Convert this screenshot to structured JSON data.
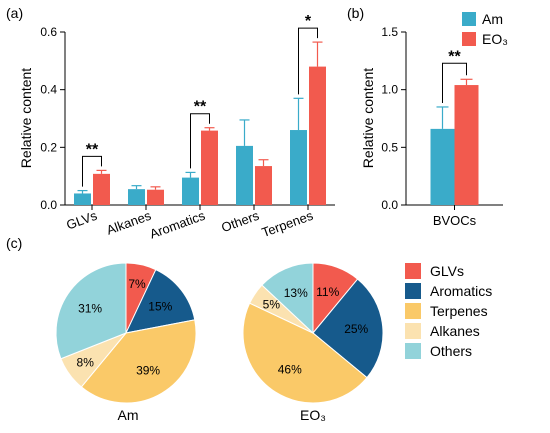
{
  "colors": {
    "Am": "#3aabc9",
    "EO3": "#f25a4e",
    "GLVs": "#f25a4e",
    "Aromatics": "#165a8c",
    "Terpenes": "#fac968",
    "Alkanes": "#fbe2b0",
    "Others": "#92d3da"
  },
  "panel_labels": {
    "a": "(a)",
    "b": "(b)",
    "c": "(c)"
  },
  "bar_legend": {
    "items": [
      {
        "key": "Am",
        "label": "Am"
      },
      {
        "key": "EO3",
        "label": "EO₃"
      }
    ]
  },
  "pie_legend": {
    "items": [
      {
        "key": "GLVs",
        "label": "GLVs"
      },
      {
        "key": "Aromatics",
        "label": "Aromatics"
      },
      {
        "key": "Terpenes",
        "label": "Terpenes"
      },
      {
        "key": "Alkanes",
        "label": "Alkanes"
      },
      {
        "key": "Others",
        "label": "Others"
      }
    ]
  },
  "chart_data": [
    {
      "type": "bar",
      "panel": "(a)",
      "ylabel": "Relative content",
      "ylim": [
        0,
        0.6
      ],
      "yticks": [
        "0.0",
        "0.2",
        "0.4",
        "0.6"
      ],
      "categories": [
        "GLVs",
        "Alkanes",
        "Aromatics",
        "Others",
        "Terpenes"
      ],
      "series": [
        {
          "name": "Am",
          "values": [
            0.04,
            0.055,
            0.095,
            0.205,
            0.26
          ],
          "errors": [
            0.01,
            0.012,
            0.018,
            0.09,
            0.11
          ]
        },
        {
          "name": "EO₃",
          "values": [
            0.108,
            0.053,
            0.258,
            0.135,
            0.48
          ],
          "errors": [
            0.012,
            0.01,
            0.01,
            0.022,
            0.085
          ]
        }
      ],
      "significance": [
        {
          "category": "GLVs",
          "label": "**"
        },
        {
          "category": "Aromatics",
          "label": "**"
        },
        {
          "category": "Terpenes",
          "label": "*"
        }
      ]
    },
    {
      "type": "bar",
      "panel": "(b)",
      "ylabel": "Relative content",
      "ylim": [
        0,
        1.5
      ],
      "yticks": [
        "0.0",
        "0.5",
        "1.0",
        "1.5"
      ],
      "categories": [
        "BVOCs"
      ],
      "series": [
        {
          "name": "Am",
          "values": [
            0.66
          ],
          "errors": [
            0.19
          ]
        },
        {
          "name": "EO₃",
          "values": [
            1.04
          ],
          "errors": [
            0.05
          ]
        }
      ],
      "significance": [
        {
          "category": "BVOCs",
          "label": "**"
        }
      ]
    },
    {
      "type": "pie",
      "panel": "(c)",
      "title": "Am",
      "slices": [
        {
          "label": "GLVs",
          "value": 7,
          "text": "7%"
        },
        {
          "label": "Aromatics",
          "value": 15,
          "text": "15%"
        },
        {
          "label": "Terpenes",
          "value": 39,
          "text": "39%"
        },
        {
          "label": "Alkanes",
          "value": 8,
          "text": "8%"
        },
        {
          "label": "Others",
          "value": 31,
          "text": "31%"
        }
      ]
    },
    {
      "type": "pie",
      "panel": "(c)",
      "title": "EO₃",
      "slices": [
        {
          "label": "GLVs",
          "value": 11,
          "text": "11%"
        },
        {
          "label": "Aromatics",
          "value": 25,
          "text": "25%"
        },
        {
          "label": "Terpenes",
          "value": 46,
          "text": "46%"
        },
        {
          "label": "Alkanes",
          "value": 5,
          "text": "5%"
        },
        {
          "label": "Others",
          "value": 13,
          "text": "13%"
        }
      ]
    }
  ]
}
